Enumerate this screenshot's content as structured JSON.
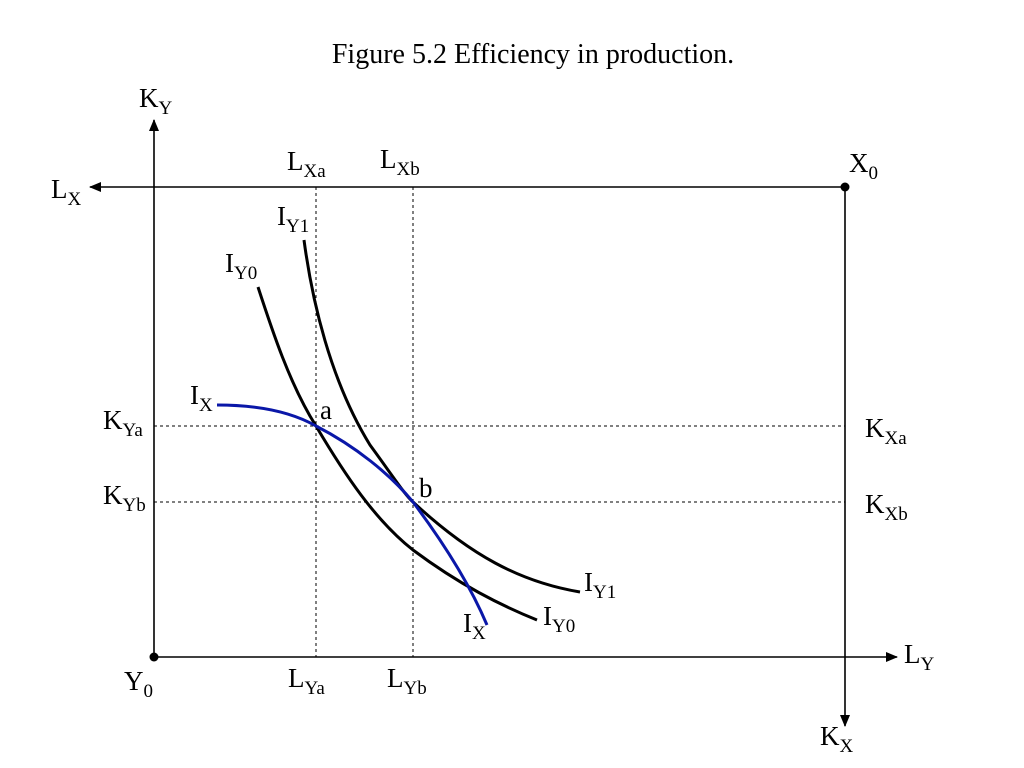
{
  "title": "Figure 5.2  Efficiency in production.",
  "colors": {
    "axis": "#000000",
    "isoquant_y": "#000000",
    "isoquant_x": "#0a17a8",
    "dashed": "#000000"
  },
  "labels": {
    "ky_axis": {
      "main": "K",
      "sub": "Y"
    },
    "lx_axis": {
      "main": "L",
      "sub": "X"
    },
    "ly_axis": {
      "main": "L",
      "sub": "Y"
    },
    "kx_axis": {
      "main": "K",
      "sub": "X"
    },
    "y0_origin": {
      "main": "Y",
      "sub": "0"
    },
    "x0_origin": {
      "main": "X",
      "sub": "0"
    },
    "lxa": {
      "main": "L",
      "sub": "Xa"
    },
    "lxb": {
      "main": "L",
      "sub": "Xb"
    },
    "lya": {
      "main": "L",
      "sub": "Ya"
    },
    "lyb": {
      "main": "L",
      "sub": "Yb"
    },
    "kya": {
      "main": "K",
      "sub": "Ya"
    },
    "kyb": {
      "main": "K",
      "sub": "Yb"
    },
    "kxa": {
      "main": "K",
      "sub": "Xa"
    },
    "kxb": {
      "main": "K",
      "sub": "Xb"
    },
    "iy0_top": {
      "main": "I",
      "sub": "Y0"
    },
    "iy1_top": {
      "main": "I",
      "sub": "Y1"
    },
    "iy0_bottom": {
      "main": "I",
      "sub": "Y0"
    },
    "iy1_bottom": {
      "main": "I",
      "sub": "Y1"
    },
    "ix_left": {
      "main": "I",
      "sub": "X"
    },
    "ix_bottom": {
      "main": "I",
      "sub": "X"
    },
    "point_a": "a",
    "point_b": "b"
  }
}
